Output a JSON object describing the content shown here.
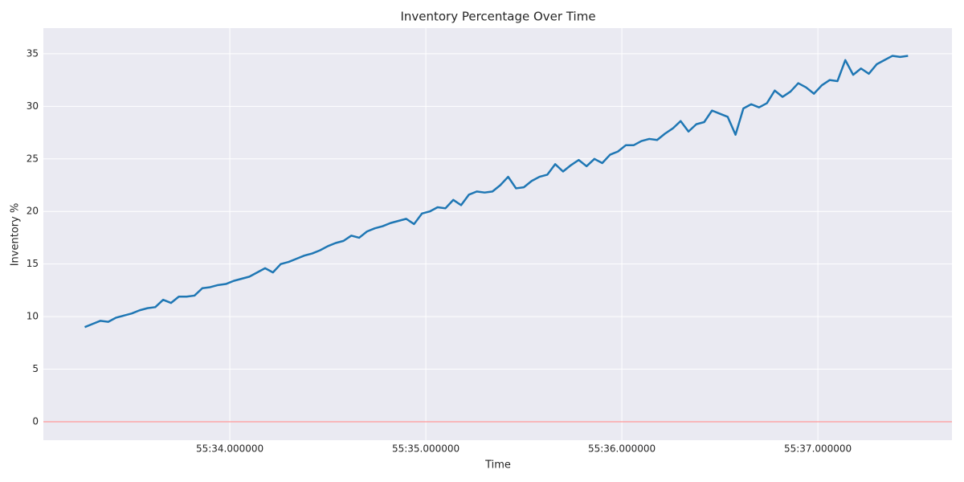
{
  "chart_data": {
    "type": "line",
    "title": "Inventory Percentage Over Time",
    "xlabel": "Time",
    "ylabel": "Inventory %",
    "x": [
      33.26,
      33.3,
      33.34,
      33.38,
      33.42,
      33.46,
      33.5,
      33.54,
      33.58,
      33.62,
      33.66,
      33.7,
      33.74,
      33.78,
      33.82,
      33.86,
      33.9,
      33.94,
      33.98,
      34.02,
      34.06,
      34.1,
      34.14,
      34.18,
      34.22,
      34.26,
      34.3,
      34.34,
      34.38,
      34.42,
      34.46,
      34.5,
      34.54,
      34.58,
      34.62,
      34.66,
      34.7,
      34.74,
      34.78,
      34.82,
      34.86,
      34.9,
      34.94,
      34.98,
      35.02,
      35.06,
      35.1,
      35.14,
      35.18,
      35.22,
      35.26,
      35.3,
      35.34,
      35.38,
      35.42,
      35.46,
      35.5,
      35.54,
      35.58,
      35.62,
      35.66,
      35.7,
      35.74,
      35.78,
      35.82,
      35.86,
      35.9,
      35.94,
      35.98,
      36.02,
      36.06,
      36.1,
      36.14,
      36.18,
      36.22,
      36.26,
      36.3,
      36.34,
      36.38,
      36.42,
      36.46,
      36.5,
      36.54,
      36.58,
      36.62,
      36.66,
      36.7,
      36.74,
      36.78,
      36.82,
      36.86,
      36.9,
      36.94,
      36.98,
      37.02,
      37.06,
      37.1,
      37.14,
      37.18,
      37.22,
      37.26,
      37.3,
      37.34,
      37.38,
      37.42,
      37.46
    ],
    "series": [
      {
        "name": "Inventory %",
        "color": "#1f77b4",
        "values": [
          9.0,
          9.3,
          9.6,
          9.5,
          9.9,
          10.1,
          10.3,
          10.6,
          10.8,
          10.9,
          11.6,
          11.3,
          11.9,
          11.9,
          12.0,
          12.7,
          12.8,
          13.0,
          13.1,
          13.4,
          13.6,
          13.8,
          14.2,
          14.6,
          14.2,
          15.0,
          15.2,
          15.5,
          15.8,
          16.0,
          16.3,
          16.7,
          17.0,
          17.2,
          17.7,
          17.5,
          18.1,
          18.4,
          18.6,
          18.9,
          19.1,
          19.3,
          18.8,
          19.8,
          20.0,
          20.4,
          20.3,
          21.1,
          20.6,
          21.6,
          21.9,
          21.8,
          21.9,
          22.5,
          23.3,
          22.2,
          22.3,
          22.9,
          23.3,
          23.5,
          24.5,
          23.8,
          24.4,
          24.9,
          24.3,
          25.0,
          24.6,
          25.4,
          25.7,
          26.3,
          26.3,
          26.7,
          26.9,
          26.8,
          27.4,
          27.9,
          28.6,
          27.6,
          28.3,
          28.5,
          29.6,
          29.3,
          29.0,
          27.3,
          29.8,
          30.2,
          29.9,
          30.3,
          31.5,
          30.9,
          31.4,
          32.2,
          31.8,
          31.2,
          32.0,
          32.5,
          32.4,
          34.4,
          33.0,
          33.6,
          33.1,
          34.0,
          34.4,
          34.8,
          34.7,
          34.8
        ]
      }
    ],
    "xlim": [
      33.049,
      37.684
    ],
    "xticks": [
      {
        "value": 34,
        "label": "55:34.000000"
      },
      {
        "value": 35,
        "label": "55:35.000000"
      },
      {
        "value": 36,
        "label": "55:36.000000"
      },
      {
        "value": 37,
        "label": "55:37.000000"
      }
    ],
    "ylim": [
      -1.76,
      37.44
    ],
    "yticks": [
      0,
      5,
      10,
      15,
      20,
      25,
      30,
      35
    ],
    "grid": true,
    "hlines": [
      {
        "y": 0,
        "color": "#ff9999"
      }
    ]
  }
}
